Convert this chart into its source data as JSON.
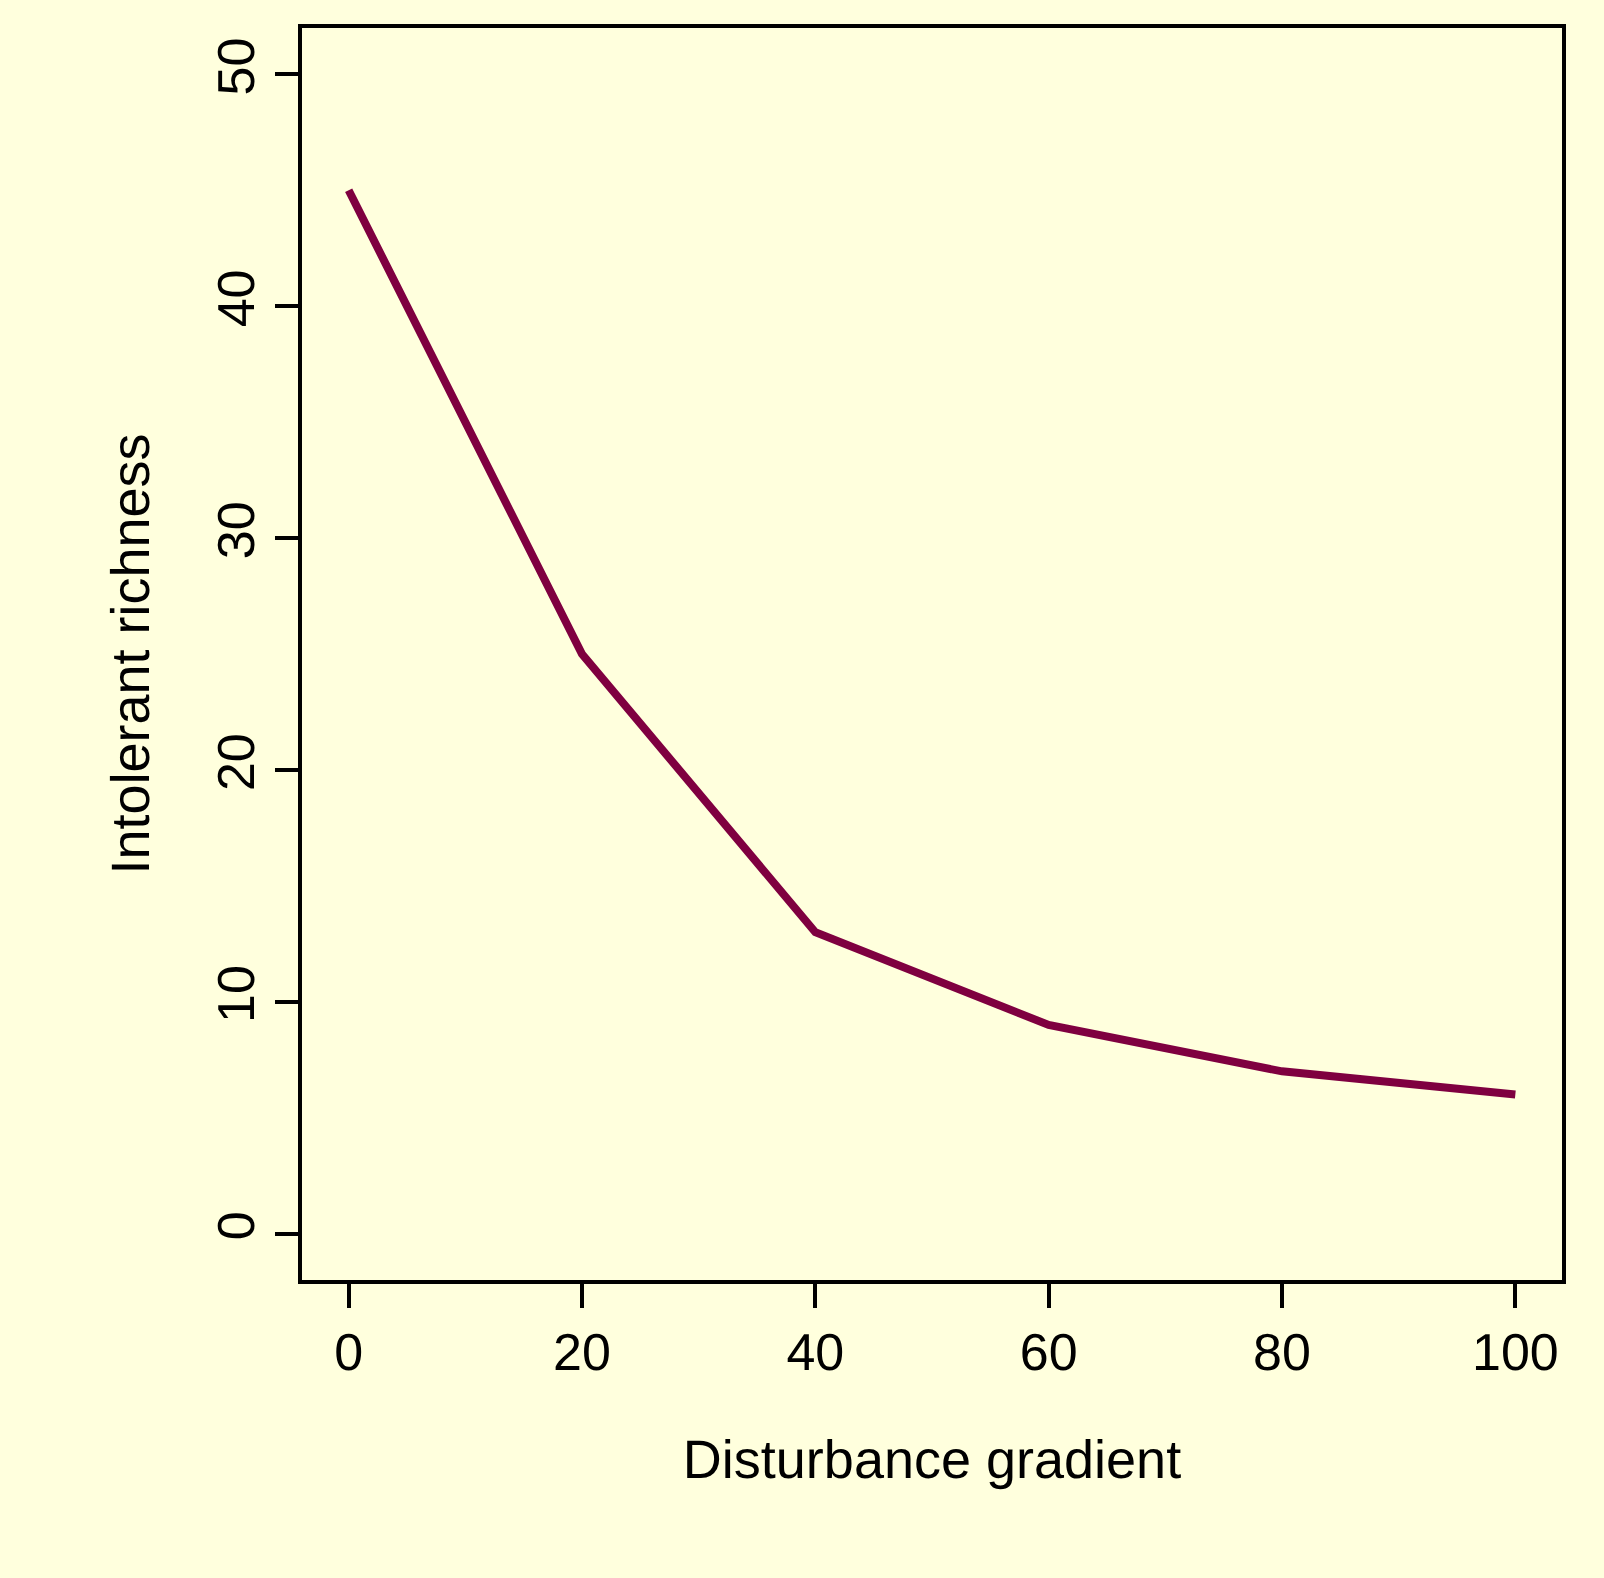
{
  "chart_data": {
    "type": "line",
    "xlabel": "Disturbance gradient",
    "ylabel": "Intolerant richness",
    "x": [
      0,
      20,
      40,
      60,
      80,
      100
    ],
    "series": [
      {
        "color": "#7f0040",
        "values": [
          45,
          25,
          13,
          9,
          7,
          6
        ]
      }
    ],
    "xlim": [
      -4,
      104
    ],
    "xticks": [
      0,
      20,
      40,
      60,
      80,
      100
    ],
    "ylim": [
      -2,
      52
    ],
    "yticks": [
      0,
      10,
      20,
      30,
      40,
      50
    ],
    "grid": false,
    "legend": false,
    "marker": "none",
    "line_style": "solid"
  }
}
